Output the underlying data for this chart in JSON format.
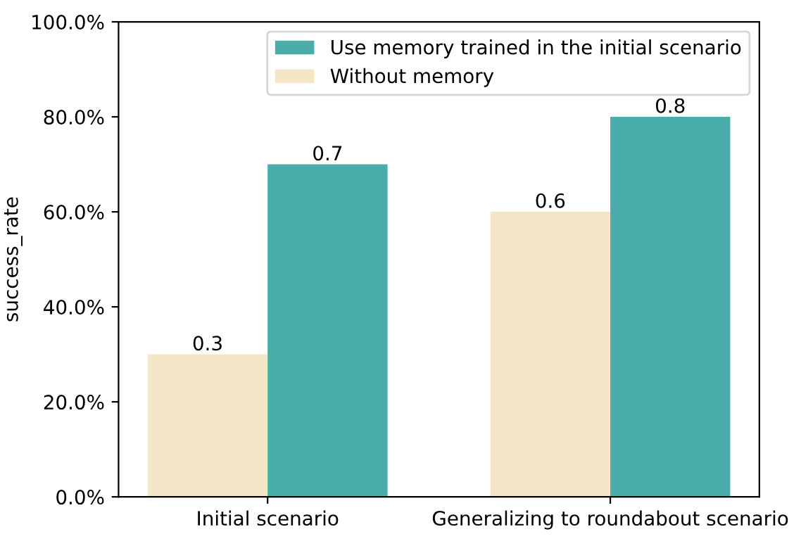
{
  "chart_data": {
    "type": "bar",
    "ylabel": "success_rate",
    "categories": [
      "Initial scenario",
      "Generalizing to roundabout scenario"
    ],
    "series": [
      {
        "name": "Without memory",
        "color": "#f5e6c8",
        "values": [
          0.3,
          0.6
        ]
      },
      {
        "name": "Use memory trained in the initial scenario",
        "color": "#4aadab",
        "values": [
          0.7,
          0.8
        ]
      }
    ],
    "ylim": [
      0,
      1
    ],
    "yticks": [
      {
        "value": 0,
        "label": "0.0%"
      },
      {
        "value": 0.2,
        "label": "20.0%"
      },
      {
        "value": 0.4,
        "label": "40.0%"
      },
      {
        "value": 0.6,
        "label": "60.0%"
      },
      {
        "value": 0.8,
        "label": "80.0%"
      },
      {
        "value": 1.0,
        "label": "100.0%"
      }
    ],
    "data_labels": true,
    "legend": "top right"
  }
}
